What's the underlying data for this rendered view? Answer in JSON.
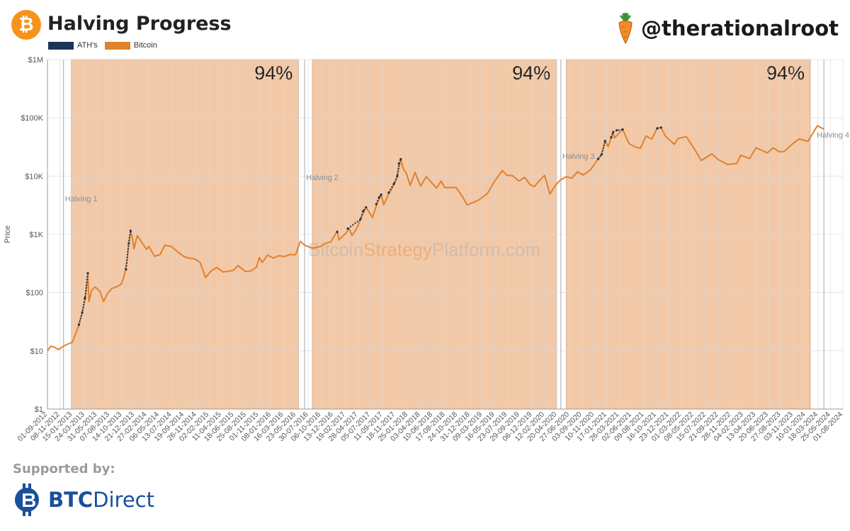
{
  "header": {
    "title": "Halving Progress",
    "handle": "@therationalroot",
    "logo_icon": "bitcoin-logo-icon",
    "brand_icon": "carrot-icon"
  },
  "colors": {
    "bitcoin": "#e0812c",
    "ath": "#1c3557",
    "band": "#f2c9a8",
    "band_border": "#d9a57c",
    "grid": "#d8d8d8"
  },
  "footer": {
    "supported_label": "Supported by:",
    "sponsor_bold": "BTC",
    "sponsor_rest": "Direct",
    "sponsor_icon": "btcdirect-logo-icon"
  },
  "chart_data": {
    "type": "line",
    "title": "Halving Progress",
    "ylabel": "Price",
    "xlabel": "",
    "y_scale": "log",
    "ylim": [
      1,
      1000000
    ],
    "xlim": [
      "2012-09-01",
      "2024-08-01"
    ],
    "grid": true,
    "legend": [
      {
        "name": "ATH's",
        "color": "#1c3557"
      },
      {
        "name": "Bitcoin",
        "color": "#e0812c"
      }
    ],
    "y_ticks": [
      {
        "value": 1,
        "label": "$1"
      },
      {
        "value": 10,
        "label": "$10"
      },
      {
        "value": 100,
        "label": "$100"
      },
      {
        "value": 1000,
        "label": "$1K"
      },
      {
        "value": 10000,
        "label": "$10K"
      },
      {
        "value": 100000,
        "label": "$100K"
      },
      {
        "value": 1000000,
        "label": "$1M"
      }
    ],
    "x_ticks": [
      "01-09-2012",
      "08-11-2012",
      "15-01-2013",
      "24-03-2013",
      "31-05-2013",
      "07-08-2013",
      "14-10-2013",
      "21-12-2013",
      "27-02-2014",
      "06-05-2014",
      "13-07-2014",
      "19-09-2014",
      "26-11-2014",
      "02-02-2015",
      "11-04-2015",
      "18-06-2015",
      "25-08-2015",
      "01-11-2015",
      "08-01-2016",
      "16-03-2016",
      "23-05-2016",
      "30-07-2016",
      "06-10-2016",
      "13-12-2016",
      "19-02-2017",
      "28-04-2017",
      "05-07-2017",
      "11-09-2017",
      "18-11-2017",
      "25-01-2018",
      "03-04-2018",
      "10-06-2018",
      "17-08-2018",
      "24-10-2018",
      "31-12-2018",
      "09-03-2019",
      "16-05-2019",
      "23-07-2019",
      "29-09-2019",
      "06-12-2019",
      "12-02-2020",
      "20-04-2020",
      "27-06-2020",
      "03-09-2020",
      "10-11-2020",
      "17-01-2021",
      "26-03-2021",
      "02-06-2021",
      "09-08-2021",
      "16-10-2021",
      "23-12-2021",
      "01-03-2022",
      "08-05-2022",
      "15-07-2022",
      "21-09-2022",
      "28-11-2022",
      "04-02-2023",
      "13-04-2023",
      "20-06-2023",
      "27-08-2023",
      "03-11-2023",
      "10-01-2024",
      "18-03-2024",
      "25-05-2024",
      "01-08-2024"
    ],
    "halvings": [
      {
        "label": "Halving 1",
        "date": "2012-11-28"
      },
      {
        "label": "Halving 2",
        "date": "2016-07-09"
      },
      {
        "label": "Halving 3",
        "date": "2020-05-11"
      },
      {
        "label": "Halving 4",
        "date": "2024-04-19"
      }
    ],
    "progress_bands": [
      {
        "start": "2013-01-10",
        "end": "2016-06-05",
        "progress_label": "94%"
      },
      {
        "start": "2016-08-20",
        "end": "2020-04-15",
        "progress_label": "94%"
      },
      {
        "start": "2020-06-10",
        "end": "2024-02-05",
        "progress_label": "94%"
      }
    ],
    "watermark": {
      "part1": "Bitcoin",
      "part2": "Strategy",
      "part3": "Platform.com"
    },
    "series": [
      {
        "name": "Bitcoin",
        "color": "#e0812c",
        "points": [
          [
            "2012-09-01",
            10
          ],
          [
            "2012-09-20",
            12
          ],
          [
            "2012-10-10",
            11.5
          ],
          [
            "2012-11-01",
            10.5
          ],
          [
            "2012-11-28",
            12
          ],
          [
            "2012-12-20",
            13
          ],
          [
            "2013-01-15",
            14
          ],
          [
            "2013-02-15",
            25
          ],
          [
            "2013-03-10",
            45
          ],
          [
            "2013-03-31",
            95
          ],
          [
            "2013-04-10",
            215
          ],
          [
            "2013-04-16",
            70
          ],
          [
            "2013-05-01",
            110
          ],
          [
            "2013-05-20",
            125
          ],
          [
            "2013-06-15",
            105
          ],
          [
            "2013-07-05",
            70
          ],
          [
            "2013-07-25",
            95
          ],
          [
            "2013-08-20",
            118
          ],
          [
            "2013-09-20",
            128
          ],
          [
            "2013-10-10",
            140
          ],
          [
            "2013-10-25",
            190
          ],
          [
            "2013-11-08",
            320
          ],
          [
            "2013-11-20",
            700
          ],
          [
            "2013-11-30",
            1150
          ],
          [
            "2013-12-10",
            850
          ],
          [
            "2013-12-18",
            560
          ],
          [
            "2014-01-05",
            950
          ],
          [
            "2014-02-10",
            650
          ],
          [
            "2014-02-25",
            550
          ],
          [
            "2014-03-10",
            620
          ],
          [
            "2014-04-10",
            420
          ],
          [
            "2014-05-10",
            450
          ],
          [
            "2014-06-05",
            650
          ],
          [
            "2014-07-10",
            620
          ],
          [
            "2014-08-15",
            500
          ],
          [
            "2014-09-20",
            410
          ],
          [
            "2014-10-15",
            390
          ],
          [
            "2014-11-15",
            380
          ],
          [
            "2014-12-15",
            330
          ],
          [
            "2015-01-14",
            180
          ],
          [
            "2015-02-10",
            230
          ],
          [
            "2015-03-15",
            270
          ],
          [
            "2015-04-20",
            225
          ],
          [
            "2015-06-15",
            240
          ],
          [
            "2015-07-10",
            290
          ],
          [
            "2015-08-20",
            230
          ],
          [
            "2015-09-20",
            235
          ],
          [
            "2015-10-20",
            275
          ],
          [
            "2015-11-04",
            400
          ],
          [
            "2015-11-20",
            330
          ],
          [
            "2015-12-20",
            440
          ],
          [
            "2016-01-20",
            390
          ],
          [
            "2016-02-20",
            430
          ],
          [
            "2016-03-20",
            415
          ],
          [
            "2016-04-20",
            450
          ],
          [
            "2016-05-20",
            445
          ],
          [
            "2016-06-16",
            760
          ],
          [
            "2016-07-09",
            650
          ],
          [
            "2016-08-20",
            580
          ],
          [
            "2016-10-01",
            610
          ],
          [
            "2016-11-01",
            700
          ],
          [
            "2016-12-01",
            750
          ],
          [
            "2017-01-04",
            1150
          ],
          [
            "2017-01-12",
            800
          ],
          [
            "2017-02-20",
            1050
          ],
          [
            "2017-03-10",
            1250
          ],
          [
            "2017-03-25",
            950
          ],
          [
            "2017-04-20",
            1250
          ],
          [
            "2017-05-10",
            1800
          ],
          [
            "2017-06-10",
            2900
          ],
          [
            "2017-07-15",
            1950
          ],
          [
            "2017-08-10",
            3400
          ],
          [
            "2017-09-01",
            4800
          ],
          [
            "2017-09-15",
            3200
          ],
          [
            "2017-10-10",
            4800
          ],
          [
            "2017-10-30",
            6200
          ],
          [
            "2017-11-25",
            9000
          ],
          [
            "2017-12-17",
            19500
          ],
          [
            "2017-12-30",
            13500
          ],
          [
            "2018-01-17",
            11000
          ],
          [
            "2018-02-06",
            6900
          ],
          [
            "2018-03-05",
            11500
          ],
          [
            "2018-04-05",
            6700
          ],
          [
            "2018-05-05",
            9800
          ],
          [
            "2018-06-05",
            7600
          ],
          [
            "2018-07-01",
            6200
          ],
          [
            "2018-07-25",
            8200
          ],
          [
            "2018-08-15",
            6300
          ],
          [
            "2018-10-15",
            6400
          ],
          [
            "2018-11-20",
            4400
          ],
          [
            "2018-12-15",
            3200
          ],
          [
            "2019-01-20",
            3550
          ],
          [
            "2019-02-20",
            3950
          ],
          [
            "2019-04-05",
            5000
          ],
          [
            "2019-05-15",
            8200
          ],
          [
            "2019-06-26",
            12500
          ],
          [
            "2019-07-20",
            10300
          ],
          [
            "2019-08-20",
            10200
          ],
          [
            "2019-09-25",
            8200
          ],
          [
            "2019-10-26",
            9500
          ],
          [
            "2019-11-25",
            7100
          ],
          [
            "2019-12-18",
            6600
          ],
          [
            "2020-01-20",
            8700
          ],
          [
            "2020-02-12",
            10300
          ],
          [
            "2020-03-12",
            4900
          ],
          [
            "2020-04-10",
            6900
          ],
          [
            "2020-05-11",
            8700
          ],
          [
            "2020-06-10",
            9700
          ],
          [
            "2020-07-10",
            9200
          ],
          [
            "2020-08-10",
            11800
          ],
          [
            "2020-09-10",
            10400
          ],
          [
            "2020-10-20",
            12800
          ],
          [
            "2020-11-25",
            18500
          ],
          [
            "2020-12-20",
            23500
          ],
          [
            "2021-01-08",
            40000
          ],
          [
            "2021-01-25",
            32000
          ],
          [
            "2021-02-21",
            57000
          ],
          [
            "2021-02-28",
            45000
          ],
          [
            "2021-04-14",
            63000
          ],
          [
            "2021-05-19",
            36000
          ],
          [
            "2021-06-22",
            31500
          ],
          [
            "2021-07-20",
            30000
          ],
          [
            "2021-08-20",
            49000
          ],
          [
            "2021-09-20",
            43000
          ],
          [
            "2021-10-20",
            66000
          ],
          [
            "2021-11-10",
            68000
          ],
          [
            "2021-12-05",
            48000
          ],
          [
            "2022-01-22",
            35000
          ],
          [
            "2022-02-10",
            44000
          ],
          [
            "2022-03-28",
            47500
          ],
          [
            "2022-05-12",
            29000
          ],
          [
            "2022-06-18",
            18500
          ],
          [
            "2022-08-15",
            24000
          ],
          [
            "2022-09-20",
            19000
          ],
          [
            "2022-11-09",
            15800
          ],
          [
            "2022-12-30",
            16500
          ],
          [
            "2023-01-20",
            22800
          ],
          [
            "2023-03-10",
            20000
          ],
          [
            "2023-04-14",
            30500
          ],
          [
            "2023-06-15",
            25000
          ],
          [
            "2023-07-15",
            30500
          ],
          [
            "2023-08-20",
            26000
          ],
          [
            "2023-09-15",
            26500
          ],
          [
            "2023-10-25",
            34500
          ],
          [
            "2023-12-05",
            43500
          ],
          [
            "2024-01-23",
            39500
          ],
          [
            "2024-03-14",
            73000
          ],
          [
            "2024-04-19",
            64000
          ]
        ]
      },
      {
        "name": "ATH's",
        "color": "#1c3557",
        "segments": [
          [
            [
              "2013-02-20",
              28
            ],
            [
              "2013-03-10",
              45
            ],
            [
              "2013-03-25",
              80
            ],
            [
              "2013-04-10",
              215
            ]
          ],
          [
            [
              "2013-11-05",
              250
            ],
            [
              "2013-11-20",
              700
            ],
            [
              "2013-11-30",
              1150
            ]
          ],
          [
            [
              "2017-01-03",
              1100
            ]
          ],
          [
            [
              "2017-03-02",
              1250
            ],
            [
              "2017-05-10",
              1800
            ],
            [
              "2017-05-25",
              2500
            ],
            [
              "2017-06-10",
              2900
            ]
          ],
          [
            [
              "2017-08-05",
              3300
            ],
            [
              "2017-08-20",
              4300
            ],
            [
              "2017-09-01",
              4800
            ]
          ],
          [
            [
              "2017-10-12",
              5200
            ],
            [
              "2017-11-10",
              7400
            ],
            [
              "2017-11-28",
              10000
            ],
            [
              "2017-12-07",
              16500
            ],
            [
              "2017-12-17",
              19500
            ]
          ],
          [
            [
              "2020-12-01",
              19700
            ],
            [
              "2020-12-20",
              23500
            ],
            [
              "2021-01-08",
              40000
            ]
          ],
          [
            [
              "2021-02-10",
              46000
            ],
            [
              "2021-02-21",
              57000
            ],
            [
              "2021-03-13",
              61000
            ],
            [
              "2021-04-14",
              63000
            ]
          ],
          [
            [
              "2021-10-20",
              66000
            ],
            [
              "2021-11-10",
              68000
            ]
          ]
        ]
      }
    ]
  }
}
